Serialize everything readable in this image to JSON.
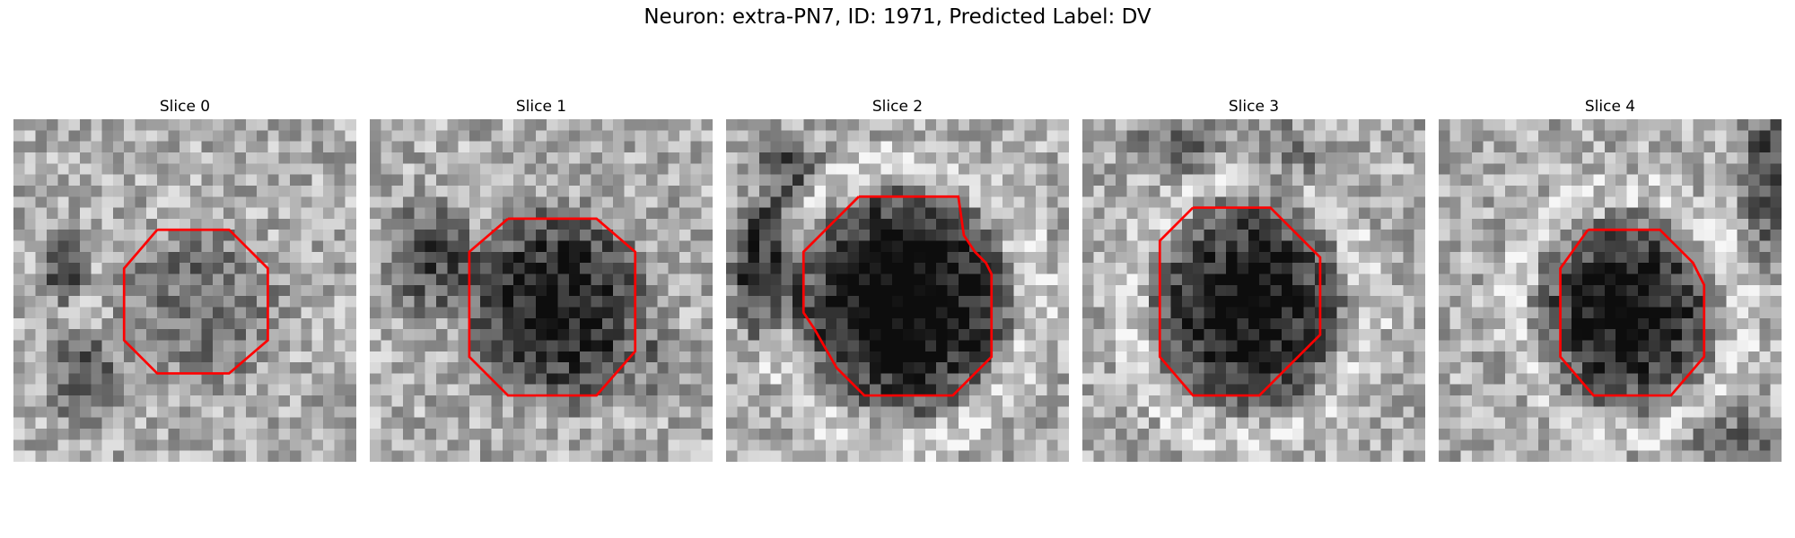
{
  "figure": {
    "title": "Neuron: extra-PN7, ID: 1971, Predicted Label: DV"
  },
  "panels": [
    {
      "title": "Slice 0",
      "outline_color": "#ff0000"
    },
    {
      "title": "Slice 1",
      "outline_color": "#ff0000"
    },
    {
      "title": "Slice 2",
      "outline_color": "#ff0000"
    },
    {
      "title": "Slice 3",
      "outline_color": "#ff0000"
    },
    {
      "title": "Slice 4",
      "outline_color": "#ff0000"
    }
  ]
}
